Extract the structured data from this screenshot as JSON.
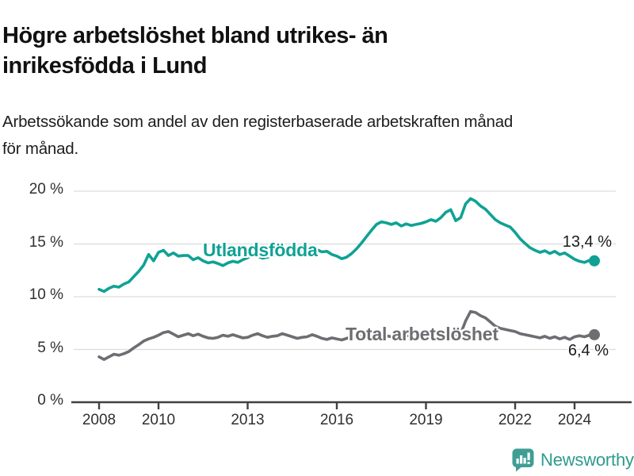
{
  "header": {
    "title_line1": "Högre arbetslöshet bland utrikes- än",
    "title_line2": "inrikesfödda i Lund",
    "subtitle_line1": "Arbetssökande som andel av den registerbaserade arbetskraften månad",
    "subtitle_line2": "för månad."
  },
  "chart_data": {
    "type": "line",
    "title": "Högre arbetslöshet bland utrikes- än inrikesfödda i Lund",
    "subtitle": "Arbetssökande som andel av den registerbaserade arbetskraften månad för månad.",
    "unit": "%",
    "grid": "horizontal",
    "legend_position": "inline-labels",
    "ylim": [
      0,
      20
    ],
    "x_start_year": 2008.0,
    "x_step_years": 0.16667,
    "x_end_year": 2024.67,
    "y_axis": {
      "ticks": [
        {
          "value": 0,
          "label": "0 %"
        },
        {
          "value": 5,
          "label": "5 %"
        },
        {
          "value": 10,
          "label": "10 %"
        },
        {
          "value": 15,
          "label": "15 %"
        },
        {
          "value": 20,
          "label": "20 %"
        }
      ]
    },
    "x_axis": {
      "ticks": [
        {
          "year": 2008,
          "label": "2008"
        },
        {
          "year": 2010,
          "label": "2010"
        },
        {
          "year": 2013,
          "label": "2013"
        },
        {
          "year": 2016,
          "label": "2016"
        },
        {
          "year": 2019,
          "label": "2019"
        },
        {
          "year": 2022,
          "label": "2022"
        },
        {
          "year": 2024,
          "label": "2024"
        }
      ]
    },
    "series": [
      {
        "name": "Utlandsfödda",
        "color": "#0fa294",
        "end_value": 13.4,
        "end_label": "13,4 %",
        "values": [
          10.7,
          10.5,
          10.8,
          11.0,
          10.9,
          11.2,
          11.4,
          11.9,
          12.4,
          13.0,
          14.0,
          13.4,
          14.2,
          14.4,
          13.9,
          14.15,
          13.85,
          13.9,
          13.9,
          13.5,
          13.7,
          13.4,
          13.2,
          13.3,
          13.15,
          12.95,
          13.2,
          13.35,
          13.25,
          13.5,
          13.7,
          14.0,
          13.85,
          13.65,
          13.75,
          13.9,
          13.95,
          14.2,
          14.0,
          14.3,
          14.45,
          14.3,
          14.5,
          14.35,
          14.45,
          14.25,
          14.3,
          14.0,
          13.85,
          13.6,
          13.75,
          14.1,
          14.55,
          15.1,
          15.7,
          16.3,
          16.85,
          17.1,
          17.0,
          16.85,
          17.0,
          16.7,
          16.9,
          16.75,
          16.85,
          16.95,
          17.1,
          17.3,
          17.15,
          17.5,
          18.0,
          18.25,
          17.2,
          17.5,
          18.8,
          19.3,
          19.05,
          18.6,
          18.3,
          17.8,
          17.3,
          17.0,
          16.8,
          16.6,
          16.1,
          15.5,
          15.05,
          14.65,
          14.4,
          14.2,
          14.35,
          14.1,
          14.3,
          14.0,
          14.15,
          13.85,
          13.55,
          13.35,
          13.25,
          13.45,
          13.4
        ]
      },
      {
        "name": "Total arbetslöshet",
        "color": "#6e6d72",
        "end_value": 6.4,
        "end_label": "6,4 %",
        "values": [
          4.3,
          4.05,
          4.3,
          4.55,
          4.45,
          4.6,
          4.8,
          5.15,
          5.45,
          5.8,
          6.0,
          6.15,
          6.35,
          6.6,
          6.7,
          6.45,
          6.2,
          6.35,
          6.5,
          6.3,
          6.45,
          6.25,
          6.1,
          6.05,
          6.15,
          6.35,
          6.25,
          6.4,
          6.25,
          6.1,
          6.15,
          6.35,
          6.5,
          6.3,
          6.15,
          6.25,
          6.3,
          6.5,
          6.35,
          6.2,
          6.05,
          6.15,
          6.2,
          6.4,
          6.25,
          6.05,
          5.95,
          6.1,
          6.0,
          5.9,
          6.05,
          6.2,
          6.1,
          6.25,
          6.2,
          6.35,
          6.25,
          6.4,
          6.3,
          6.2,
          6.3,
          6.2,
          6.35,
          6.25,
          6.35,
          6.3,
          6.4,
          6.5,
          6.45,
          6.55,
          6.5,
          6.4,
          6.3,
          6.5,
          7.7,
          8.6,
          8.5,
          8.2,
          8.0,
          7.6,
          7.2,
          7.0,
          6.9,
          6.8,
          6.7,
          6.5,
          6.4,
          6.3,
          6.2,
          6.1,
          6.25,
          6.05,
          6.2,
          6.0,
          6.15,
          5.95,
          6.2,
          6.3,
          6.2,
          6.35,
          6.4
        ]
      }
    ]
  },
  "colors": {
    "grid": "#dcdcdc",
    "axis": "#404040",
    "tick_text": "#303030",
    "title_text": "#111111",
    "logo_mark": "#3f9e94",
    "logo_text": "#2b9c8f"
  },
  "footer": {
    "brand": "Newsworthy"
  }
}
